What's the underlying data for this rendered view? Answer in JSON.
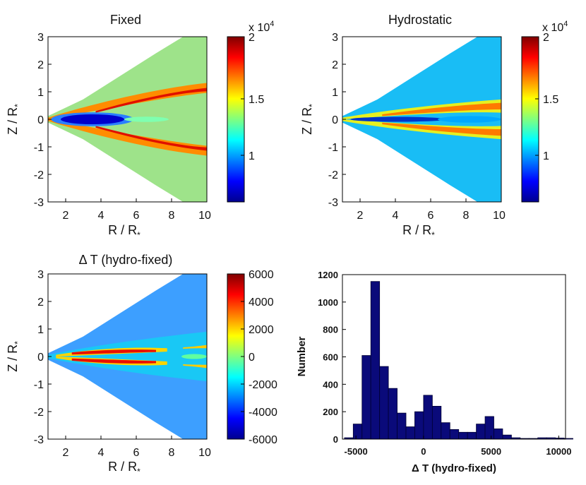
{
  "panels": {
    "fixed": {
      "title": "Fixed",
      "xlabel": "R / R",
      "xlabel_sub": "*",
      "ylabel": "Z / R",
      "ylabel_sub": "*",
      "xticks": [
        "2",
        "4",
        "6",
        "8",
        "10"
      ],
      "yticks": [
        "3",
        "2",
        "1",
        "0",
        "-1",
        "-2",
        "-3"
      ],
      "colorbar": {
        "multiplier": "x 10",
        "multiplier_exp": "4",
        "ticks": [
          "2",
          "1.5",
          "1"
        ],
        "range": [
          0.55,
          2.0
        ]
      }
    },
    "hydrostatic": {
      "title": "Hydrostatic",
      "xlabel": "R / R",
      "xlabel_sub": "*",
      "ylabel": "Z / R",
      "ylabel_sub": "*",
      "xticks": [
        "2",
        "4",
        "6",
        "8",
        "10"
      ],
      "yticks": [
        "3",
        "2",
        "1",
        "0",
        "-1",
        "-2",
        "-3"
      ],
      "colorbar": {
        "multiplier": "x 10",
        "multiplier_exp": "4",
        "ticks": [
          "2",
          "1.5",
          "1"
        ],
        "range": [
          0.55,
          2.0
        ]
      }
    },
    "difference": {
      "title": "Δ T (hydro-fixed)",
      "xlabel": "R / R",
      "xlabel_sub": "*",
      "ylabel": "Z / R",
      "ylabel_sub": "*",
      "xticks": [
        "2",
        "4",
        "6",
        "8",
        "10"
      ],
      "yticks": [
        "3",
        "2",
        "1",
        "0",
        "-1",
        "-2",
        "-3"
      ],
      "colorbar": {
        "ticks": [
          "6000",
          "4000",
          "2000",
          "0",
          "-2000",
          "-4000",
          "-6000"
        ],
        "range": [
          -6000,
          6000
        ]
      }
    }
  },
  "chart_data": [
    {
      "type": "heatmap",
      "title": "Fixed",
      "xlabel": "R / R*",
      "ylabel": "Z / R*",
      "xlim": [
        1,
        10
      ],
      "ylim": [
        -3,
        3
      ],
      "colorbar_label": "x 10^4",
      "colorbar_range": [
        5500,
        20000
      ],
      "colorbar_ticks": [
        20000,
        15000,
        10000
      ],
      "features": "wedge-shaped disk; cold (~6000) midplane core near R=3-5; hot (~20000) layers near Z=±0.8 for R>6; ~12000 background"
    },
    {
      "type": "heatmap",
      "title": "Hydrostatic",
      "xlabel": "R / R*",
      "ylabel": "Z / R*",
      "xlim": [
        1,
        10
      ],
      "ylim": [
        -3,
        3
      ],
      "colorbar_label": "x 10^4",
      "colorbar_range": [
        5500,
        20000
      ],
      "colorbar_ticks": [
        20000,
        15000,
        10000
      ],
      "features": "thin hot layers near Z=±0.4; cool midplane; ~10000 background"
    },
    {
      "type": "heatmap",
      "title": "Δ T (hydro-fixed)",
      "xlabel": "R / R*",
      "ylabel": "Z / R*",
      "xlim": [
        1,
        10
      ],
      "ylim": [
        -3,
        3
      ],
      "colorbar_range": [
        -6000,
        6000
      ],
      "colorbar_ticks": [
        6000,
        4000,
        2000,
        0,
        -2000,
        -4000,
        -6000
      ],
      "features": "positive (~5000) thin layers near Z=±0.2 at R=3-7; mostly negative (~-2500) elsewhere"
    },
    {
      "type": "bar",
      "subtype": "histogram",
      "title": "",
      "xlabel": "Δ T (hydro-fixed)",
      "ylabel": "Number",
      "xlim": [
        -6000,
        10500
      ],
      "ylim": [
        0,
        1200
      ],
      "xticks": [
        "-5000",
        "0",
        "5000",
        "10000"
      ],
      "yticks": [
        "0",
        "200",
        "400",
        "600",
        "800",
        "1000",
        "1200"
      ],
      "bin_width": 650,
      "bin_start": -5850,
      "values": [
        10,
        110,
        610,
        1150,
        530,
        370,
        190,
        90,
        200,
        320,
        240,
        120,
        70,
        50,
        50,
        110,
        165,
        75,
        30,
        10,
        5,
        5,
        10,
        10,
        8,
        5
      ]
    }
  ]
}
